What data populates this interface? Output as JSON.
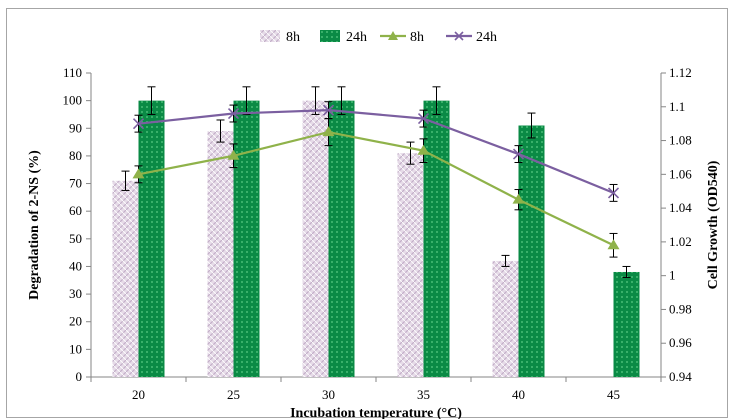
{
  "chart_data": {
    "type": "bar+line",
    "x_label": "Incubation temperature (°C)",
    "y_left_label": "Degradation of 2-NS (%)",
    "y_right_label": "Cell Growth (OD540)",
    "categories": [
      "20",
      "25",
      "30",
      "35",
      "40",
      "45"
    ],
    "y_left_lim": [
      0,
      110
    ],
    "y_left_ticks": [
      "0",
      "10",
      "20",
      "30",
      "40",
      "50",
      "60",
      "70",
      "80",
      "90",
      "100",
      "110"
    ],
    "y_right_lim": [
      0.94,
      1.12
    ],
    "y_right_ticks": [
      "0.94",
      "0.96",
      "0.98",
      "1",
      "1.02",
      "1.04",
      "1.06",
      "1.08",
      "1.1",
      "1.12"
    ],
    "bar_series": [
      {
        "name": "8h",
        "color": "#d9c8dd",
        "values": [
          71,
          89,
          100,
          81,
          42,
          null
        ],
        "errors": [
          3.5,
          4,
          5,
          4,
          2,
          null
        ]
      },
      {
        "name": "24h",
        "color": "#0f8f4a",
        "values": [
          100,
          100,
          100,
          100,
          91,
          38
        ],
        "errors": [
          5,
          5,
          5,
          5,
          4.5,
          2
        ]
      }
    ],
    "line_series": [
      {
        "name": "8h",
        "color": "#8fb24a",
        "marker": "triangle",
        "values": [
          1.06,
          1.071,
          1.085,
          1.074,
          1.045,
          1.018
        ],
        "errors": [
          0.005,
          0.007,
          0.008,
          0.007,
          0.006,
          0.007
        ]
      },
      {
        "name": "24h",
        "color": "#7b5fa0",
        "marker": "x",
        "values": [
          1.09,
          1.096,
          1.098,
          1.093,
          1.072,
          1.049
        ],
        "errors": [
          0.005,
          0.005,
          0.005,
          0.005,
          0.005,
          0.005
        ]
      }
    ],
    "legend": {
      "position": "top-center",
      "labels": [
        "8h",
        "24h",
        "8h",
        "24h"
      ]
    },
    "grid": false
  }
}
